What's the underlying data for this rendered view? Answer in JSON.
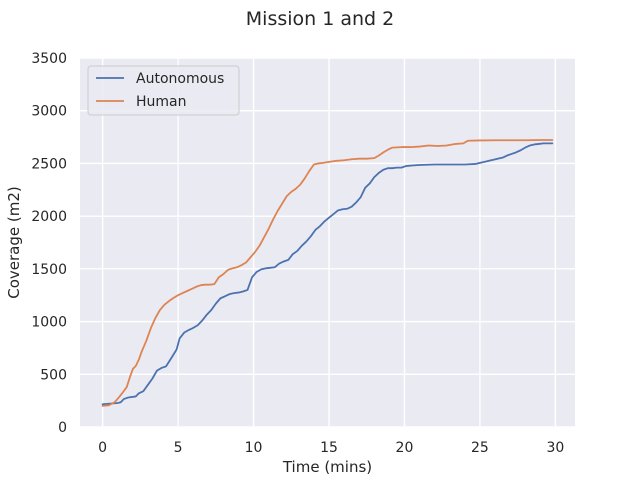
{
  "chart_data": {
    "type": "line",
    "title": "Mission 1 and 2",
    "xlabel": "Time (mins)",
    "ylabel": "Coverage (m2)",
    "xlim": [
      -1.5,
      31.3
    ],
    "ylim": [
      0,
      3500
    ],
    "xticks": [
      0,
      5,
      10,
      15,
      20,
      25,
      30
    ],
    "yticks": [
      0,
      500,
      1000,
      1500,
      2000,
      2500,
      3000,
      3500
    ],
    "grid": true,
    "legend_position": "top-left",
    "background_color": "#EAEAF2",
    "series": [
      {
        "name": "Autonomous",
        "color": "#4C72B0",
        "points": [
          [
            0,
            215
          ],
          [
            0.5,
            222
          ],
          [
            1.0,
            228
          ],
          [
            1.2,
            235
          ],
          [
            1.4,
            265
          ],
          [
            1.7,
            280
          ],
          [
            2.2,
            290
          ],
          [
            2.4,
            320
          ],
          [
            2.7,
            340
          ],
          [
            3.0,
            400
          ],
          [
            3.3,
            460
          ],
          [
            3.6,
            535
          ],
          [
            3.9,
            560
          ],
          [
            4.2,
            575
          ],
          [
            4.6,
            665
          ],
          [
            4.9,
            735
          ],
          [
            5.1,
            840
          ],
          [
            5.4,
            895
          ],
          [
            5.7,
            920
          ],
          [
            6.0,
            940
          ],
          [
            6.3,
            965
          ],
          [
            6.6,
            1010
          ],
          [
            6.9,
            1065
          ],
          [
            7.2,
            1110
          ],
          [
            7.5,
            1170
          ],
          [
            7.8,
            1220
          ],
          [
            8.1,
            1240
          ],
          [
            8.4,
            1260
          ],
          [
            8.7,
            1270
          ],
          [
            9.0,
            1275
          ],
          [
            9.3,
            1285
          ],
          [
            9.6,
            1300
          ],
          [
            9.9,
            1420
          ],
          [
            10.2,
            1470
          ],
          [
            10.5,
            1495
          ],
          [
            10.8,
            1505
          ],
          [
            11.1,
            1510
          ],
          [
            11.4,
            1515
          ],
          [
            11.7,
            1550
          ],
          [
            12.0,
            1570
          ],
          [
            12.3,
            1585
          ],
          [
            12.6,
            1640
          ],
          [
            12.9,
            1670
          ],
          [
            13.2,
            1720
          ],
          [
            13.5,
            1760
          ],
          [
            13.8,
            1810
          ],
          [
            14.1,
            1870
          ],
          [
            14.4,
            1905
          ],
          [
            14.7,
            1950
          ],
          [
            15.0,
            1985
          ],
          [
            15.3,
            2020
          ],
          [
            15.6,
            2055
          ],
          [
            15.9,
            2065
          ],
          [
            16.2,
            2070
          ],
          [
            16.5,
            2090
          ],
          [
            16.8,
            2130
          ],
          [
            17.1,
            2180
          ],
          [
            17.4,
            2270
          ],
          [
            17.7,
            2310
          ],
          [
            18.0,
            2370
          ],
          [
            18.3,
            2410
          ],
          [
            18.6,
            2440
          ],
          [
            18.9,
            2455
          ],
          [
            19.2,
            2455
          ],
          [
            19.5,
            2460
          ],
          [
            19.8,
            2460
          ],
          [
            20.1,
            2475
          ],
          [
            20.5,
            2480
          ],
          [
            21.0,
            2485
          ],
          [
            22.0,
            2490
          ],
          [
            23.0,
            2490
          ],
          [
            24.0,
            2490
          ],
          [
            24.7,
            2495
          ],
          [
            25.0,
            2505
          ],
          [
            25.3,
            2515
          ],
          [
            25.6,
            2525
          ],
          [
            25.9,
            2535
          ],
          [
            26.2,
            2545
          ],
          [
            26.5,
            2555
          ],
          [
            26.8,
            2575
          ],
          [
            27.1,
            2590
          ],
          [
            27.4,
            2605
          ],
          [
            27.7,
            2625
          ],
          [
            28.0,
            2650
          ],
          [
            28.3,
            2670
          ],
          [
            28.6,
            2680
          ],
          [
            28.9,
            2685
          ],
          [
            29.2,
            2690
          ],
          [
            29.5,
            2690
          ],
          [
            29.8,
            2690
          ]
        ]
      },
      {
        "name": "Human",
        "color": "#DD8452",
        "points": [
          [
            0,
            200
          ],
          [
            0.4,
            205
          ],
          [
            0.8,
            235
          ],
          [
            1.1,
            285
          ],
          [
            1.4,
            340
          ],
          [
            1.6,
            380
          ],
          [
            1.8,
            470
          ],
          [
            2.0,
            550
          ],
          [
            2.2,
            580
          ],
          [
            2.4,
            640
          ],
          [
            2.6,
            720
          ],
          [
            2.9,
            820
          ],
          [
            3.2,
            940
          ],
          [
            3.5,
            1035
          ],
          [
            3.8,
            1110
          ],
          [
            4.1,
            1160
          ],
          [
            4.4,
            1195
          ],
          [
            4.7,
            1225
          ],
          [
            5.0,
            1250
          ],
          [
            5.3,
            1270
          ],
          [
            5.6,
            1290
          ],
          [
            5.9,
            1310
          ],
          [
            6.2,
            1330
          ],
          [
            6.5,
            1345
          ],
          [
            6.8,
            1350
          ],
          [
            7.1,
            1350
          ],
          [
            7.4,
            1355
          ],
          [
            7.7,
            1420
          ],
          [
            8.0,
            1450
          ],
          [
            8.3,
            1490
          ],
          [
            8.6,
            1505
          ],
          [
            8.9,
            1515
          ],
          [
            9.2,
            1535
          ],
          [
            9.5,
            1560
          ],
          [
            9.8,
            1610
          ],
          [
            10.1,
            1660
          ],
          [
            10.4,
            1720
          ],
          [
            10.7,
            1800
          ],
          [
            11.0,
            1880
          ],
          [
            11.3,
            1970
          ],
          [
            11.6,
            2050
          ],
          [
            11.9,
            2120
          ],
          [
            12.2,
            2190
          ],
          [
            12.5,
            2230
          ],
          [
            12.8,
            2260
          ],
          [
            13.1,
            2300
          ],
          [
            13.4,
            2360
          ],
          [
            13.7,
            2430
          ],
          [
            14.0,
            2490
          ],
          [
            14.3,
            2500
          ],
          [
            14.6,
            2505
          ],
          [
            15.0,
            2515
          ],
          [
            15.5,
            2525
          ],
          [
            16.0,
            2530
          ],
          [
            16.5,
            2540
          ],
          [
            17.0,
            2545
          ],
          [
            17.5,
            2545
          ],
          [
            18.0,
            2550
          ],
          [
            18.3,
            2575
          ],
          [
            18.6,
            2605
          ],
          [
            18.9,
            2630
          ],
          [
            19.2,
            2650
          ],
          [
            19.8,
            2655
          ],
          [
            20.4,
            2655
          ],
          [
            21.0,
            2660
          ],
          [
            21.6,
            2670
          ],
          [
            22.2,
            2665
          ],
          [
            22.8,
            2670
          ],
          [
            23.4,
            2685
          ],
          [
            23.9,
            2690
          ],
          [
            24.2,
            2715
          ],
          [
            25.0,
            2718
          ],
          [
            26.0,
            2720
          ],
          [
            27.0,
            2720
          ],
          [
            28.0,
            2720
          ],
          [
            29.0,
            2722
          ],
          [
            29.8,
            2722
          ]
        ]
      }
    ]
  }
}
